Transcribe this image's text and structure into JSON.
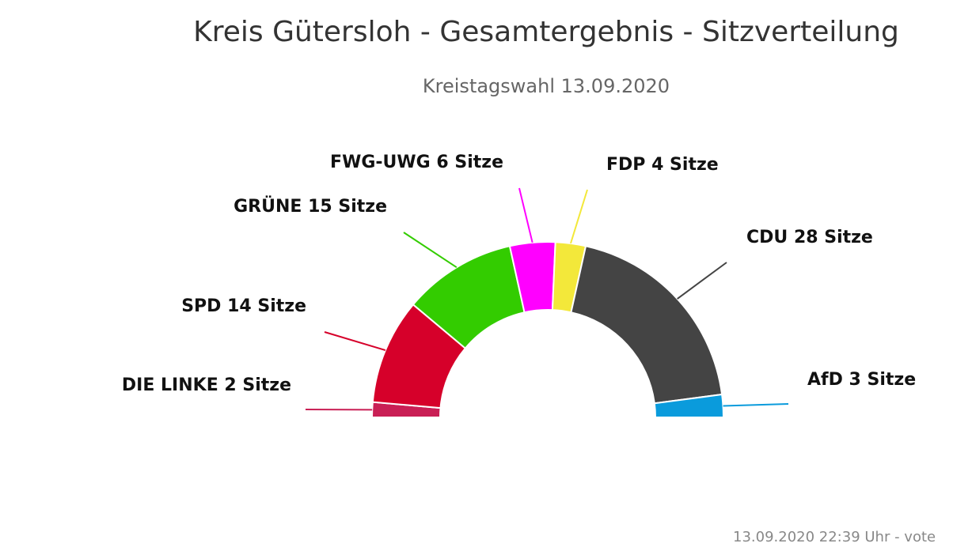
{
  "chart_data": {
    "type": "semi-donut",
    "title": "Kreis Gütersloh - Gesamtergebnis - Sitzverteilung",
    "subtitle": "Kreistagswahl 13.09.2020",
    "categories": [
      "DIE LINKE",
      "SPD",
      "GRÜNE",
      "FWG-UWG",
      "FDP",
      "CDU",
      "AfD"
    ],
    "values": [
      2,
      14,
      15,
      6,
      4,
      28,
      3
    ],
    "value_labels": [
      "2 Sitze",
      "14 Sitze",
      "15 Sitze",
      "6 Sitze",
      "4 Sitze",
      "28 Sitze",
      "3 Sitze"
    ],
    "colors": [
      "#c91f55",
      "#d6002a",
      "#33cc00",
      "#ff00ff",
      "#f3e83a",
      "#444444",
      "#0a9bdc"
    ],
    "footer": "13.09.2020 22:39 Uhr - vote"
  }
}
